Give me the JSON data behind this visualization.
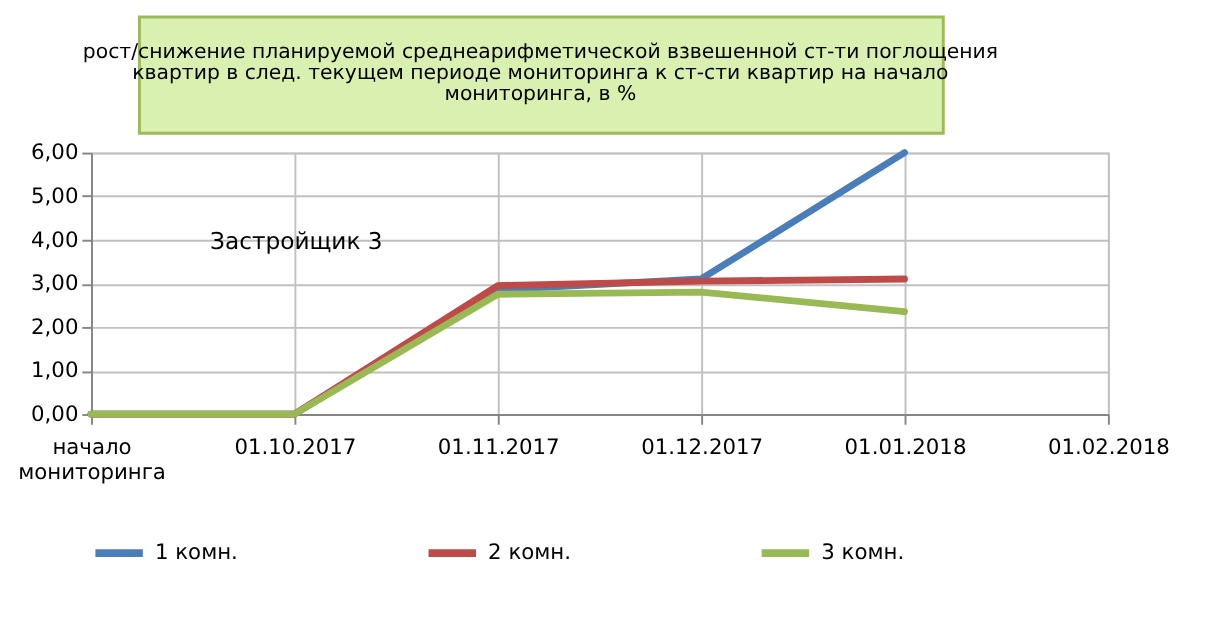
{
  "chart_data": {
    "type": "line",
    "title": "рост/снижение планируемой среднеарифметической взвешенной ст-ти поглощения квартир в след. текущем периоде мониторинга к ст-сти квартир на начало мониторинга, в %",
    "annotations": [
      "Застройщик 3"
    ],
    "categories": [
      "начало мониторинга",
      "01.10.2017",
      "01.11.2017",
      "01.12.2017",
      "01.01.2018",
      "01.02.2018"
    ],
    "series": [
      {
        "name": "1 комн.",
        "color": "#4a7ebb",
        "values": [
          0,
          0,
          2.85,
          3.1,
          6.0,
          null
        ]
      },
      {
        "name": "2 комн.",
        "color": "#be4b48",
        "values": [
          0,
          0,
          2.95,
          3.05,
          3.1,
          null
        ]
      },
      {
        "name": "3 комн.",
        "color": "#98b954",
        "values": [
          0,
          0,
          2.75,
          2.8,
          2.35,
          null
        ]
      }
    ],
    "ylim": [
      0,
      6
    ],
    "yticks": [
      {
        "value": 0,
        "label": "0,00"
      },
      {
        "value": 1,
        "label": "1,00"
      },
      {
        "value": 2,
        "label": "2,00"
      },
      {
        "value": 3,
        "label": "3,00"
      },
      {
        "value": 4,
        "label": "4,00"
      },
      {
        "value": 5,
        "label": "5,00"
      },
      {
        "value": 6,
        "label": "6,00"
      }
    ],
    "grid": true,
    "legend": "bottom",
    "marker": "none",
    "line_style": "solid"
  }
}
